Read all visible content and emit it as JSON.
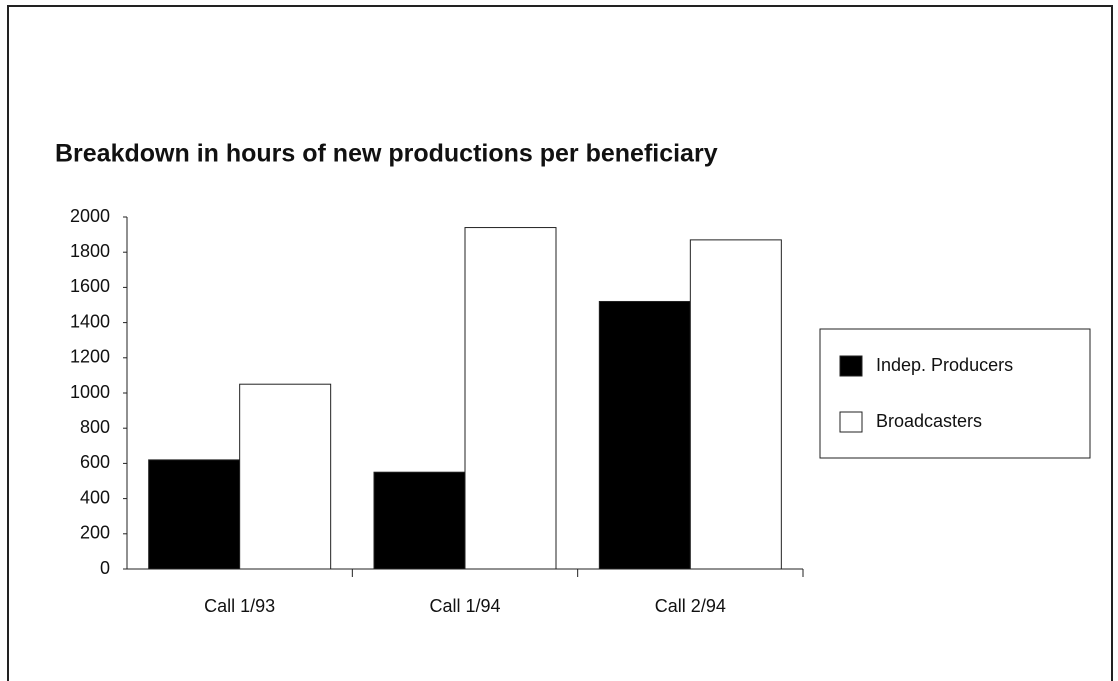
{
  "chart_data": {
    "type": "bar",
    "title": "Breakdown in hours of new productions per beneficiary",
    "categories": [
      "Call 1/93",
      "Call 1/94",
      "Call 2/94"
    ],
    "series": [
      {
        "name": "Indep. Producers",
        "color": "#000000",
        "values": [
          620,
          550,
          1520
        ]
      },
      {
        "name": "Broadcasters",
        "color": "#ffffff",
        "values": [
          1050,
          1940,
          1870
        ]
      }
    ],
    "ylim": [
      0,
      2000
    ],
    "yticks": [
      0,
      200,
      400,
      600,
      800,
      1000,
      1200,
      1400,
      1600,
      1800,
      2000
    ],
    "grid": false,
    "legend": "right"
  }
}
